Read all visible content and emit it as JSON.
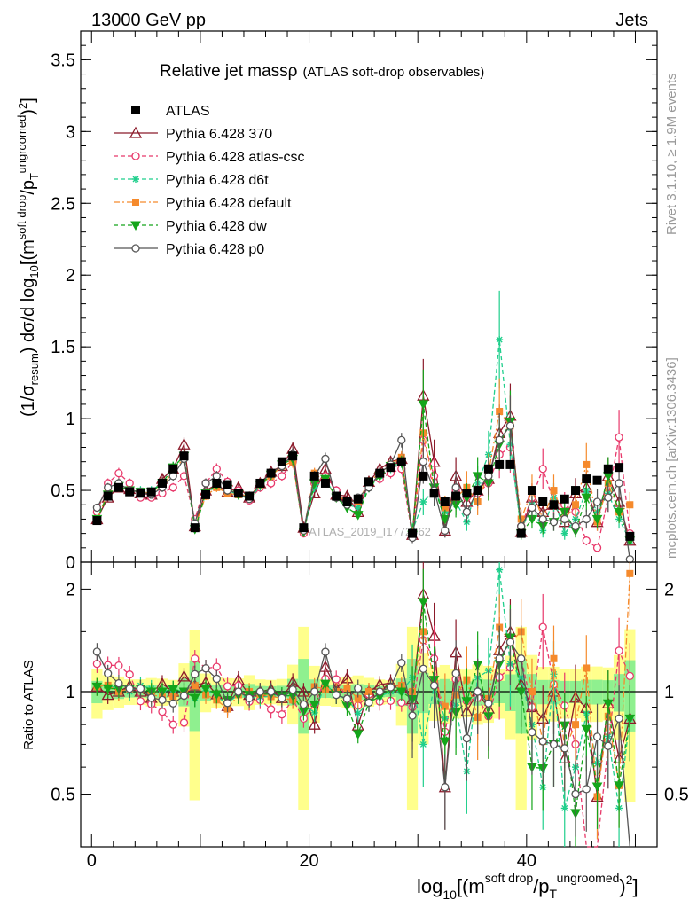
{
  "header": {
    "left": "13000 GeV pp",
    "right": "Jets"
  },
  "legend": {
    "title_main": "Relative jet massρ",
    "title_sub": "(ATLAS soft-drop observables)"
  },
  "side": {
    "rivet": "Rivet 3.1.10, ≥ 1.9M events",
    "mcplots": "mcplots.cern.ch [arXiv:1306.3436]"
  },
  "watermark": "ATLAS_2019_I1772062",
  "axes": {
    "ylabel_main": "(1/σresum) dσ/d log10[(m^soft drop/pT^ungroomed)2]",
    "ylabel_ratio": "Ratio to ATLAS",
    "xlabel": "log10[(m^soft drop/pT^ungroomed)2]"
  },
  "colors": {
    "data": "#000000",
    "p370": "#8b1a2a",
    "atlascsc": "#e8386a",
    "d6t": "#1fcf8c",
    "default": "#f58a2c",
    "dw": "#14a51a",
    "p0": "#555555",
    "band_inner": "#8ff08f",
    "band_outer": "#ffff8c"
  },
  "chart_data": {
    "type": "line",
    "xlim": [
      -1,
      52
    ],
    "main_ylim": [
      0,
      3.7
    ],
    "main_yticks": [
      "0",
      "0.5",
      "1",
      "1.5",
      "2",
      "2.5",
      "3",
      "3.5"
    ],
    "ratio_ylim": [
      0.35,
      2.4
    ],
    "ratio_yticks": [
      "0.5",
      "1",
      "2"
    ],
    "xticks": [
      "0",
      "20",
      "40"
    ],
    "x": [
      0.5,
      1.5,
      2.5,
      3.5,
      4.5,
      5.5,
      6.5,
      7.5,
      8.5,
      9.5,
      10.5,
      11.5,
      12.5,
      13.5,
      14.5,
      15.5,
      16.5,
      17.5,
      18.5,
      19.5,
      20.5,
      21.5,
      22.5,
      23.5,
      24.5,
      25.5,
      26.5,
      27.5,
      28.5,
      29.5,
      30.5,
      31.5,
      32.5,
      33.5,
      34.5,
      35.5,
      36.5,
      37.5,
      38.5,
      39.5,
      40.5,
      41.5,
      42.5,
      43.5,
      44.5,
      45.5,
      46.5,
      47.5,
      48.5,
      49.5
    ],
    "data_values": [
      0.29,
      0.46,
      0.52,
      0.49,
      0.48,
      0.49,
      0.55,
      0.65,
      0.74,
      0.24,
      0.47,
      0.55,
      0.54,
      0.48,
      0.46,
      0.55,
      0.62,
      0.7,
      0.74,
      0.24,
      0.6,
      0.55,
      0.46,
      0.42,
      0.44,
      0.56,
      0.62,
      0.66,
      0.7,
      0.2,
      0.6,
      0.48,
      0.42,
      0.46,
      0.48,
      0.5,
      0.65,
      0.68,
      0.68,
      0.2,
      0.5,
      0.42,
      0.4,
      0.44,
      0.5,
      0.58,
      0.57,
      0.65,
      0.66,
      0.18
    ],
    "series": [
      {
        "name": "Pythia 6.428 370",
        "key": "p370",
        "style": "solid",
        "marker": "triangle",
        "values": [
          0.3,
          0.45,
          0.52,
          0.51,
          0.48,
          0.47,
          0.58,
          0.65,
          0.82,
          0.25,
          0.5,
          0.54,
          0.49,
          0.52,
          0.45,
          0.55,
          0.63,
          0.67,
          0.79,
          0.24,
          0.48,
          0.65,
          0.47,
          0.46,
          0.35,
          0.56,
          0.65,
          0.7,
          0.72,
          0.19,
          1.16,
          0.7,
          0.22,
          0.6,
          0.42,
          0.5,
          0.58,
          0.9,
          1.02,
          0.21,
          0.45,
          0.35,
          0.4,
          0.28,
          0.48,
          0.52,
          0.28,
          0.6,
          0.42,
          0.15
        ]
      },
      {
        "name": "Pythia 6.428 atlas-csc",
        "key": "atlascsc",
        "style": "dash",
        "marker": "circle-open",
        "values": [
          0.35,
          0.55,
          0.62,
          0.55,
          0.45,
          0.45,
          0.48,
          0.52,
          0.6,
          0.3,
          0.55,
          0.65,
          0.56,
          0.5,
          0.43,
          0.52,
          0.55,
          0.6,
          0.7,
          0.2,
          0.55,
          0.6,
          0.5,
          0.4,
          0.4,
          0.55,
          0.58,
          0.62,
          0.65,
          0.18,
          0.85,
          0.6,
          0.32,
          0.5,
          0.45,
          0.48,
          0.55,
          0.75,
          0.8,
          0.25,
          0.45,
          0.65,
          0.42,
          0.4,
          0.35,
          0.15,
          0.1,
          0.45,
          0.87,
          0.2
        ]
      },
      {
        "name": "Pythia 6.428 d6t",
        "key": "d6t",
        "style": "dash",
        "marker": "star",
        "values": [
          0.3,
          0.48,
          0.53,
          0.49,
          0.5,
          0.5,
          0.55,
          0.66,
          0.74,
          0.23,
          0.48,
          0.53,
          0.5,
          0.47,
          0.44,
          0.53,
          0.6,
          0.68,
          0.72,
          0.22,
          0.52,
          0.58,
          0.45,
          0.4,
          0.38,
          0.52,
          0.6,
          0.66,
          0.7,
          0.22,
          0.42,
          0.5,
          0.35,
          0.42,
          0.28,
          0.55,
          0.75,
          1.55,
          0.82,
          0.22,
          0.4,
          0.22,
          0.45,
          0.2,
          0.3,
          0.5,
          0.35,
          0.48,
          0.3,
          0.15
        ]
      },
      {
        "name": "Pythia 6.428 default",
        "key": "default",
        "style": "dashdot",
        "marker": "square",
        "values": [
          0.3,
          0.48,
          0.52,
          0.5,
          0.49,
          0.48,
          0.53,
          0.63,
          0.73,
          0.25,
          0.46,
          0.52,
          0.48,
          0.47,
          0.46,
          0.54,
          0.6,
          0.67,
          0.7,
          0.22,
          0.62,
          0.56,
          0.46,
          0.43,
          0.42,
          0.56,
          0.62,
          0.68,
          0.73,
          0.2,
          0.9,
          0.52,
          0.38,
          0.45,
          0.52,
          0.42,
          0.62,
          1.05,
          0.95,
          0.3,
          0.5,
          0.3,
          0.5,
          0.3,
          0.4,
          0.68,
          0.28,
          0.55,
          0.35,
          0.4
        ]
      },
      {
        "name": "Pythia 6.428 dw",
        "key": "dw",
        "style": "dash",
        "marker": "triangle-down",
        "values": [
          0.3,
          0.47,
          0.53,
          0.5,
          0.49,
          0.49,
          0.55,
          0.66,
          0.74,
          0.23,
          0.48,
          0.54,
          0.51,
          0.47,
          0.45,
          0.54,
          0.61,
          0.68,
          0.72,
          0.21,
          0.55,
          0.58,
          0.45,
          0.38,
          0.33,
          0.52,
          0.6,
          0.67,
          0.7,
          0.19,
          1.1,
          0.52,
          0.3,
          0.4,
          0.45,
          0.6,
          0.55,
          0.82,
          0.98,
          0.2,
          0.3,
          0.25,
          0.28,
          0.35,
          0.22,
          0.45,
          0.3,
          0.6,
          0.35,
          0.15
        ]
      },
      {
        "name": "Pythia 6.428 p0",
        "key": "p0",
        "style": "solid",
        "marker": "circle-open",
        "values": [
          0.38,
          0.52,
          0.55,
          0.5,
          0.49,
          0.47,
          0.52,
          0.6,
          0.72,
          0.27,
          0.55,
          0.6,
          0.5,
          0.48,
          0.44,
          0.55,
          0.62,
          0.67,
          0.75,
          0.22,
          0.6,
          0.72,
          0.45,
          0.4,
          0.45,
          0.52,
          0.62,
          0.68,
          0.85,
          0.17,
          0.7,
          0.5,
          0.22,
          0.52,
          0.35,
          0.5,
          0.6,
          0.85,
          0.95,
          0.25,
          0.38,
          0.3,
          0.28,
          0.3,
          0.25,
          0.3,
          0.42,
          0.45,
          0.55,
          0.02
        ]
      }
    ]
  }
}
